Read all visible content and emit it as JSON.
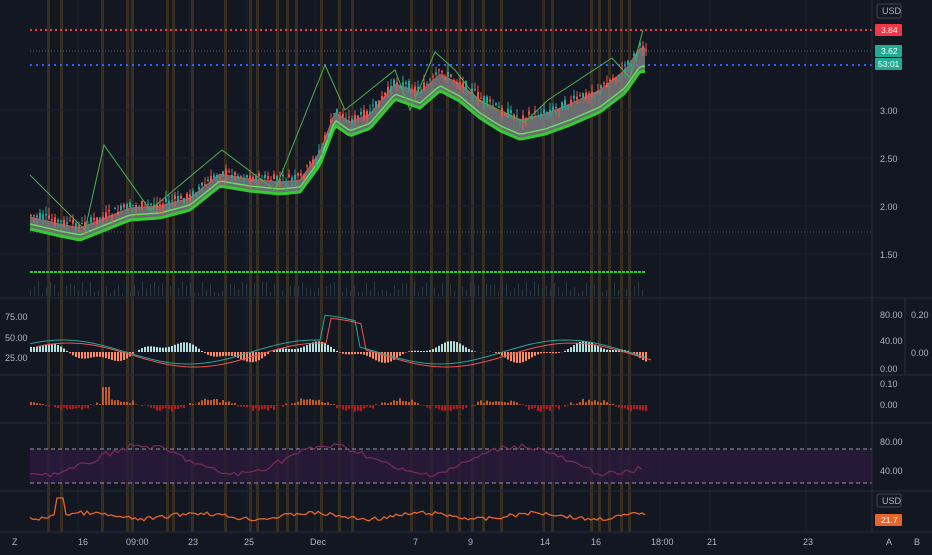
{
  "currency": "USD",
  "currency_bottom": "USD",
  "price_axis": [
    "3.00",
    "2.50",
    "2.00",
    "1.50"
  ],
  "price_badges": {
    "high": "3.84",
    "last": "3.62",
    "countdown": "53:01",
    "bottom_value": "21.7"
  },
  "osc1_left_axis": [
    "75.00",
    "50.00",
    "25.00"
  ],
  "osc1_right_axis": [
    "80.00",
    "40.00",
    "0.00"
  ],
  "osc1_far_axis": [
    "0.20",
    "0.00"
  ],
  "osc2_axis": [
    "0.10",
    "0.00"
  ],
  "rsi_axis": [
    "80.00",
    "40.00"
  ],
  "time_axis": [
    "16",
    "09:00",
    "23",
    "25",
    "Dec",
    "7",
    "9",
    "14",
    "16",
    "18:00",
    "21",
    "23"
  ],
  "corner_left": "Z",
  "corner_right": [
    "A",
    "B"
  ],
  "colors": {
    "background": "#131722",
    "up": "#26a69a",
    "down": "#ef5350",
    "ribbon_green": "#33cc33",
    "ribbon_fill": "#8a8a8a",
    "session_band": "#7a5a1e",
    "rsi_line": "#7b2d5a",
    "rsi_fill": "#2a1a3d",
    "bottom_line": "#e8652a",
    "badge_red": "#f23645",
    "badge_teal": "#22ab94",
    "dots_red": "#f23645",
    "dots_blue": "#2962ff"
  }
}
